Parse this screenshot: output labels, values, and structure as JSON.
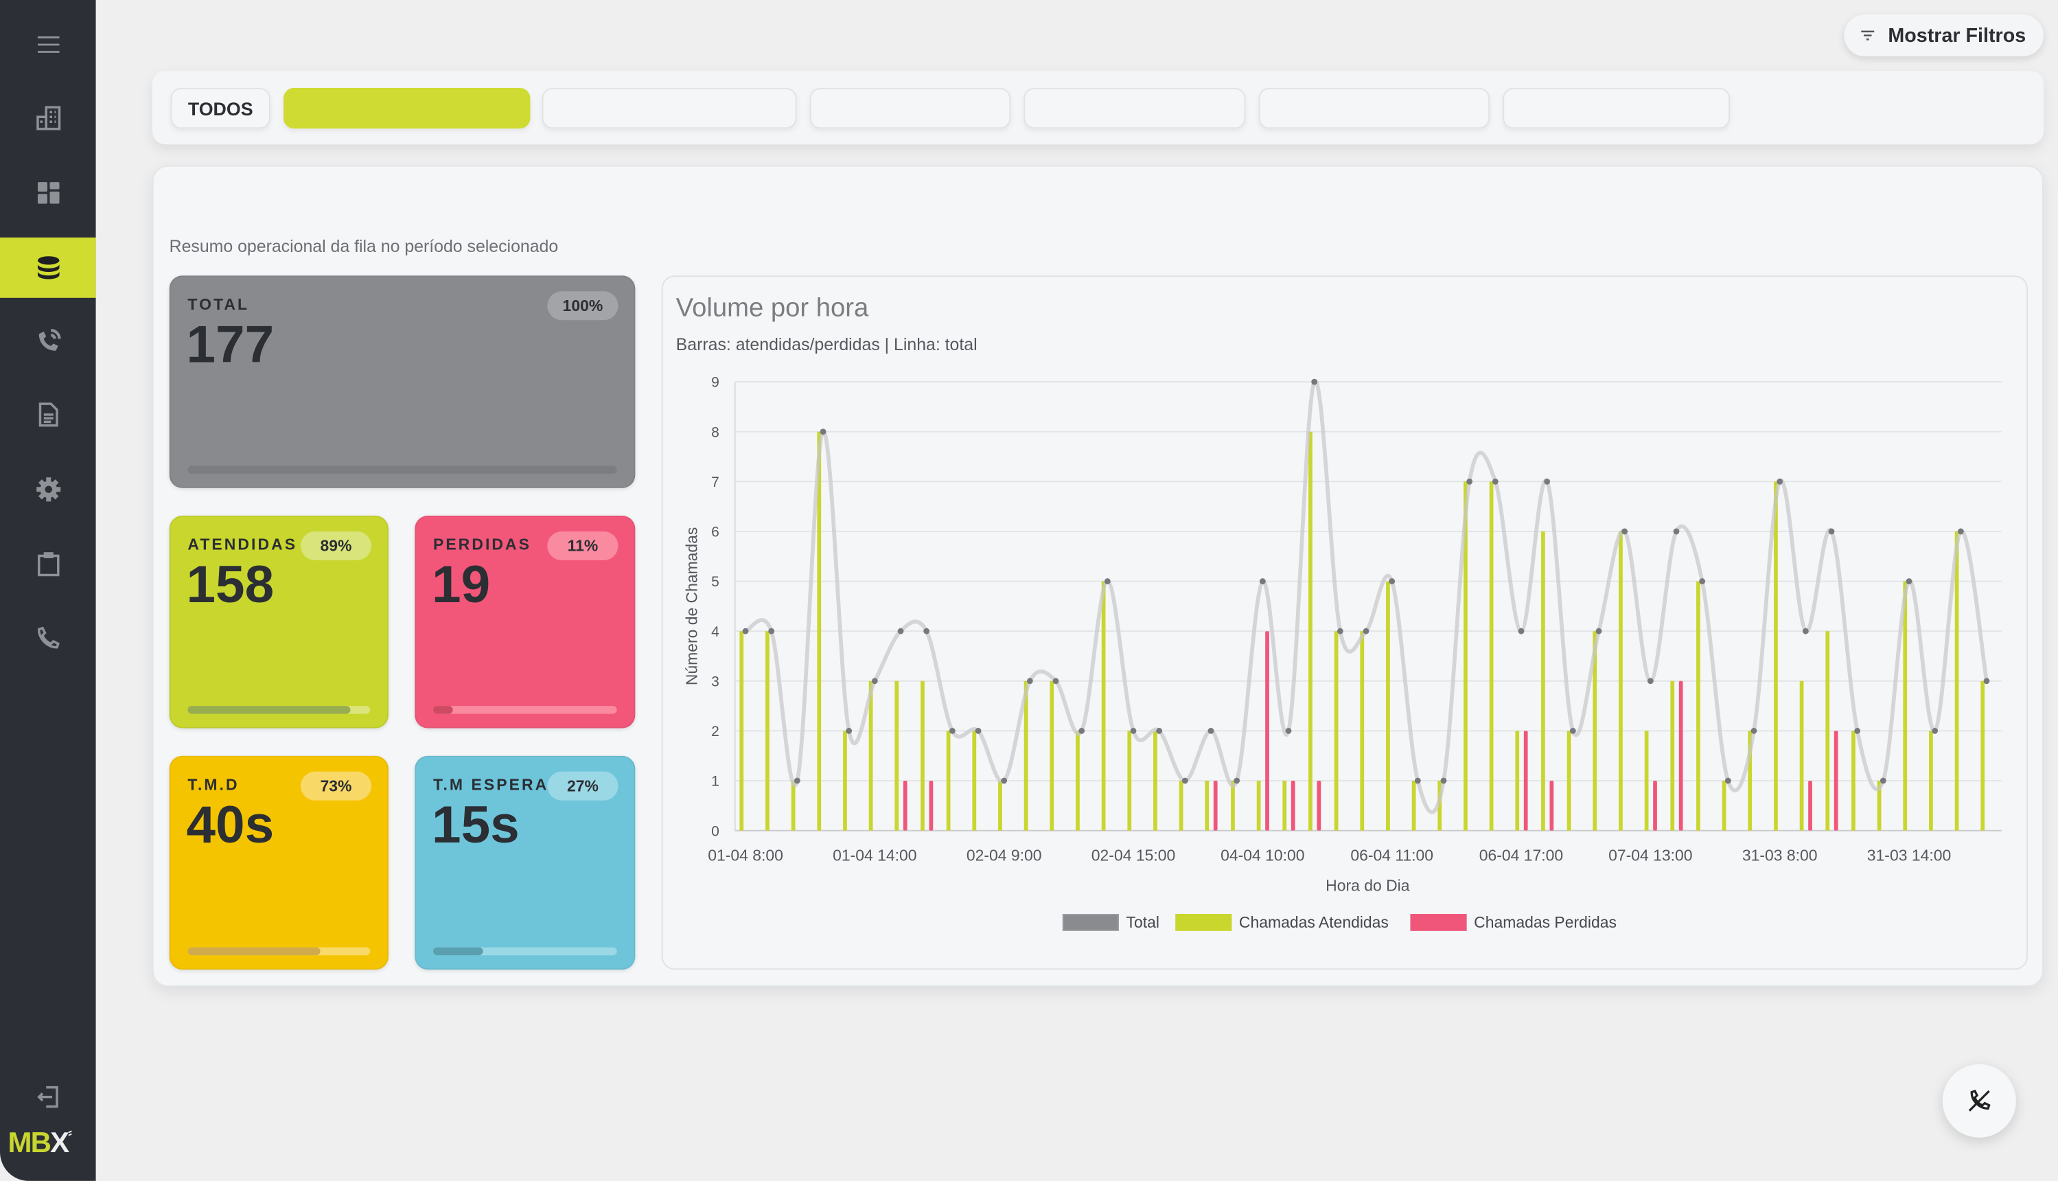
{
  "header": {
    "filters_button": "Mostrar Filtros",
    "filter_icon": "filter-icon"
  },
  "sidebar": {
    "items": [
      {
        "icon": "menu-icon"
      },
      {
        "icon": "building-icon"
      },
      {
        "icon": "dashboard-icon"
      },
      {
        "icon": "database-icon",
        "active": true
      },
      {
        "icon": "phone-call-icon"
      },
      {
        "icon": "document-icon"
      },
      {
        "icon": "gear-icon"
      },
      {
        "icon": "clipboard-icon"
      },
      {
        "icon": "phone-icon"
      }
    ],
    "logout_icon": "logout-icon",
    "logo": "MBX"
  },
  "tabs": [
    {
      "label": "TODOS"
    },
    {
      "label": "",
      "selected": true
    },
    {
      "label": ""
    },
    {
      "label": ""
    },
    {
      "label": ""
    },
    {
      "label": ""
    },
    {
      "label": ""
    }
  ],
  "summary": {
    "subtitle": "Resumo operacional da fila no período selecionado"
  },
  "kpis": {
    "total": {
      "label": "TOTAL",
      "value": "177",
      "pct": "100%",
      "progress": 0,
      "color": "#898a8e"
    },
    "atendidas": {
      "label": "ATENDIDAS",
      "value": "158",
      "pct": "89%",
      "progress": 89,
      "color": "#c8d62e"
    },
    "perdidas": {
      "label": "PERDIDAS",
      "value": "19",
      "pct": "11%",
      "progress": 11,
      "color": "#f2577a"
    },
    "tmd": {
      "label": "T.M.D",
      "value": "40s",
      "pct": "73%",
      "progress": 73,
      "color": "#f5c400"
    },
    "espera": {
      "label": "T.M ESPERA",
      "value": "15s",
      "pct": "27%",
      "progress": 27,
      "color": "#6ec5da"
    }
  },
  "chart_data": {
    "type": "bar+line",
    "title": "Volume por hora",
    "subtitle": "Barras: atendidas/perdidas | Linha: total",
    "xlabel": "Hora do Dia",
    "ylabel": "Número de Chamadas",
    "ylim": [
      0,
      9
    ],
    "yticks": [
      "0",
      "1",
      "2",
      "3",
      "4",
      "5",
      "6",
      "7",
      "8",
      "9"
    ],
    "grid": true,
    "legend": "bottom",
    "xtick_labels": [
      "01-04 8:00",
      "01-04 14:00",
      "02-04 9:00",
      "02-04 15:00",
      "04-04 10:00",
      "06-04 11:00",
      "06-04 17:00",
      "07-04 13:00",
      "31-03 8:00",
      "31-03 14:00"
    ],
    "xtick_every": 5,
    "series": [
      {
        "name": "Total",
        "kind": "line",
        "color": "#8a8b8f",
        "values": [
          4,
          4,
          1,
          8,
          2,
          3,
          4,
          4,
          2,
          2,
          1,
          3,
          3,
          2,
          5,
          2,
          2,
          1,
          2,
          1,
          5,
          2,
          9,
          4,
          4,
          5,
          1,
          1,
          7,
          7,
          4,
          7,
          2,
          4,
          6,
          3,
          6,
          5,
          1,
          2,
          7,
          4,
          6,
          2,
          1,
          5,
          2,
          6,
          3
        ]
      },
      {
        "name": "Chamadas Atendidas",
        "kind": "bar",
        "color": "#c8d62e",
        "values": [
          4,
          4,
          1,
          8,
          2,
          3,
          3,
          3,
          2,
          2,
          1,
          3,
          3,
          2,
          5,
          2,
          2,
          1,
          1,
          1,
          1,
          1,
          8,
          4,
          4,
          5,
          1,
          1,
          7,
          7,
          2,
          6,
          2,
          4,
          6,
          2,
          3,
          5,
          1,
          2,
          7,
          3,
          4,
          2,
          1,
          5,
          2,
          6,
          3
        ]
      },
      {
        "name": "Chamadas Perdidas",
        "kind": "bar",
        "color": "#f0567a",
        "values": [
          0,
          0,
          0,
          0,
          0,
          0,
          1,
          1,
          0,
          0,
          0,
          0,
          0,
          0,
          0,
          0,
          0,
          0,
          1,
          0,
          4,
          1,
          1,
          0,
          0,
          0,
          0,
          0,
          0,
          0,
          2,
          1,
          0,
          0,
          0,
          1,
          3,
          0,
          0,
          0,
          0,
          1,
          2,
          0,
          0,
          0,
          0,
          0,
          0
        ]
      }
    ]
  },
  "fab": {
    "icon": "phone-off-icon"
  }
}
